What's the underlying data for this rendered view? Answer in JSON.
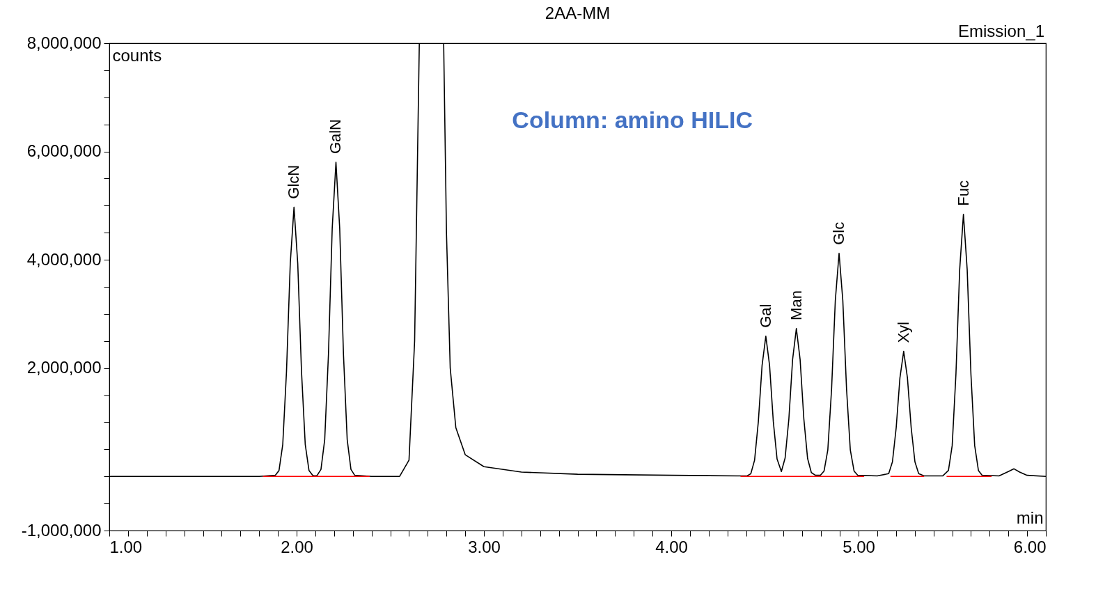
{
  "chart_data": {
    "type": "line",
    "title": "2AA-MM",
    "xlabel": "min",
    "ylabel": "counts",
    "annotations": [
      "Emission_1",
      "Column: amino HILIC",
      {
        "text": "GlcN",
        "x": 1.986,
        "y": 4970000
      },
      {
        "text": "GalN",
        "x": 2.21,
        "y": 5800000
      },
      {
        "text": "Gal",
        "x": 4.505,
        "y": 2590000
      },
      {
        "text": "Man",
        "x": 4.668,
        "y": 2730000
      },
      {
        "text": "Glc",
        "x": 4.896,
        "y": 4120000
      },
      {
        "text": "Xyl",
        "x": 5.241,
        "y": 2310000
      },
      {
        "text": "Fuc",
        "x": 5.56,
        "y": 4840000
      }
    ],
    "xlim": [
      1,
      6
    ],
    "ylim": [
      -1000000,
      8000000
    ],
    "xticks": [
      {
        "value": 1,
        "label": "1.00"
      },
      {
        "value": 1.1,
        "label": null
      },
      {
        "value": 1.2,
        "label": null
      },
      {
        "value": 1.3,
        "label": null
      },
      {
        "value": 1.4,
        "label": null
      },
      {
        "value": 1.5,
        "label": null
      },
      {
        "value": 1.6,
        "label": null
      },
      {
        "value": 1.7,
        "label": null
      },
      {
        "value": 1.8,
        "label": null
      },
      {
        "value": 1.9,
        "label": null
      },
      {
        "value": 2,
        "label": "2.00"
      },
      {
        "value": 2.1,
        "label": null
      },
      {
        "value": 2.2,
        "label": null
      },
      {
        "value": 2.3,
        "label": null
      },
      {
        "value": 2.4,
        "label": null
      },
      {
        "value": 2.5,
        "label": null
      },
      {
        "value": 2.6,
        "label": null
      },
      {
        "value": 2.7,
        "label": null
      },
      {
        "value": 2.8,
        "label": null
      },
      {
        "value": 2.9,
        "label": null
      },
      {
        "value": 3,
        "label": "3.00"
      },
      {
        "value": 3.1,
        "label": null
      },
      {
        "value": 3.2,
        "label": null
      },
      {
        "value": 3.3,
        "label": null
      },
      {
        "value": 3.4,
        "label": null
      },
      {
        "value": 3.5,
        "label": null
      },
      {
        "value": 3.6,
        "label": null
      },
      {
        "value": 3.7,
        "label": null
      },
      {
        "value": 3.8,
        "label": null
      },
      {
        "value": 3.9,
        "label": null
      },
      {
        "value": 4,
        "label": "4.00"
      },
      {
        "value": 4.1,
        "label": null
      },
      {
        "value": 4.2,
        "label": null
      },
      {
        "value": 4.3,
        "label": null
      },
      {
        "value": 4.4,
        "label": null
      },
      {
        "value": 4.5,
        "label": null
      },
      {
        "value": 4.6,
        "label": null
      },
      {
        "value": 4.7,
        "label": null
      },
      {
        "value": 4.8,
        "label": null
      },
      {
        "value": 4.9,
        "label": null
      },
      {
        "value": 5,
        "label": "5.00"
      },
      {
        "value": 5.1,
        "label": null
      },
      {
        "value": 5.2,
        "label": null
      },
      {
        "value": 5.3,
        "label": null
      },
      {
        "value": 5.4,
        "label": null
      },
      {
        "value": 5.5,
        "label": null
      },
      {
        "value": 5.6,
        "label": null
      },
      {
        "value": 5.7,
        "label": null
      },
      {
        "value": 5.8,
        "label": null
      },
      {
        "value": 5.9,
        "label": null
      },
      {
        "value": 6,
        "label": "6.00"
      }
    ],
    "yticks": [
      {
        "value": -1000000,
        "label": "-1,000,000"
      },
      {
        "value": -500000,
        "label": null
      },
      {
        "value": 0,
        "label": null
      },
      {
        "value": 500000,
        "label": null
      },
      {
        "value": 1000000,
        "label": null
      },
      {
        "value": 1500000,
        "label": null
      },
      {
        "value": 2000000,
        "label": "2,000,000"
      },
      {
        "value": 2500000,
        "label": null
      },
      {
        "value": 3000000,
        "label": null
      },
      {
        "value": 3500000,
        "label": null
      },
      {
        "value": 4000000,
        "label": "4,000,000"
      },
      {
        "value": 4500000,
        "label": null
      },
      {
        "value": 5000000,
        "label": null
      },
      {
        "value": 5500000,
        "label": null
      },
      {
        "value": 6000000,
        "label": "6,000,000"
      },
      {
        "value": 6500000,
        "label": null
      },
      {
        "value": 7000000,
        "label": null
      },
      {
        "value": 7500000,
        "label": null
      },
      {
        "value": 8000000,
        "label": "8,000,000"
      }
    ],
    "series": [
      {
        "color": "#000000",
        "x": [
          1.0,
          1.8,
          1.886,
          1.906,
          1.926,
          1.946,
          1.966,
          1.986,
          2.006,
          2.026,
          2.046,
          2.066,
          2.086,
          2.098,
          2.11,
          2.13,
          2.15,
          2.17,
          2.19,
          2.21,
          2.23,
          2.25,
          2.27,
          2.29,
          2.31,
          2.4,
          2.55,
          2.6,
          2.63,
          2.655,
          2.72,
          2.785,
          2.8,
          2.82,
          2.85,
          2.9,
          3.0,
          3.2,
          3.5,
          4.0,
          4.35,
          4.405,
          4.425,
          4.445,
          4.465,
          4.485,
          4.505,
          4.525,
          4.545,
          4.565,
          4.588,
          4.608,
          4.628,
          4.648,
          4.668,
          4.688,
          4.708,
          4.728,
          4.748,
          4.77,
          4.796,
          4.816,
          4.836,
          4.856,
          4.876,
          4.896,
          4.916,
          4.936,
          4.956,
          4.976,
          4.996,
          5.1,
          5.161,
          5.181,
          5.201,
          5.221,
          5.241,
          5.261,
          5.281,
          5.301,
          5.321,
          5.35,
          5.45,
          5.48,
          5.5,
          5.52,
          5.54,
          5.56,
          5.58,
          5.6,
          5.62,
          5.64,
          5.66,
          5.75,
          5.8,
          5.83,
          5.86,
          5.9,
          6.0
        ],
        "values": [
          0,
          0,
          20000,
          110000,
          590000,
          1940000,
          3930000,
          4970000,
          3930000,
          1940000,
          590000,
          110000,
          20000,
          10000,
          20000,
          130000,
          680000,
          2260000,
          4580000,
          5800000,
          4580000,
          2260000,
          680000,
          130000,
          20000,
          0,
          0,
          300000,
          2500000,
          8000000,
          null,
          8000000,
          4500000,
          2000000,
          900000,
          400000,
          180000,
          80000,
          40000,
          20000,
          10000,
          10000,
          50000,
          300000,
          1010000,
          2050000,
          2590000,
          2050000,
          1010000,
          320000,
          90000,
          340000,
          1060000,
          2160000,
          2730000,
          2160000,
          1060000,
          330000,
          70000,
          20000,
          20000,
          100000,
          490000,
          1610000,
          3250000,
          4120000,
          3250000,
          1610000,
          490000,
          100000,
          20000,
          10000,
          50000,
          270000,
          900000,
          1820000,
          2310000,
          1820000,
          900000,
          270000,
          50000,
          10000,
          10000,
          110000,
          570000,
          1890000,
          3820000,
          4840000,
          3820000,
          1890000,
          570000,
          110000,
          20000,
          10000,
          90000,
          140000,
          80000,
          20000,
          0
        ]
      },
      {
        "color": "#ff0000",
        "x": [
          1.82,
          2.39,
          2.5,
          4.37,
          5.03,
          5.1,
          5.17,
          5.35,
          5.4,
          5.47,
          5.71
        ],
        "values": [
          0,
          0,
          null,
          0,
          0,
          null,
          0,
          0,
          null,
          0,
          0
        ]
      }
    ]
  }
}
